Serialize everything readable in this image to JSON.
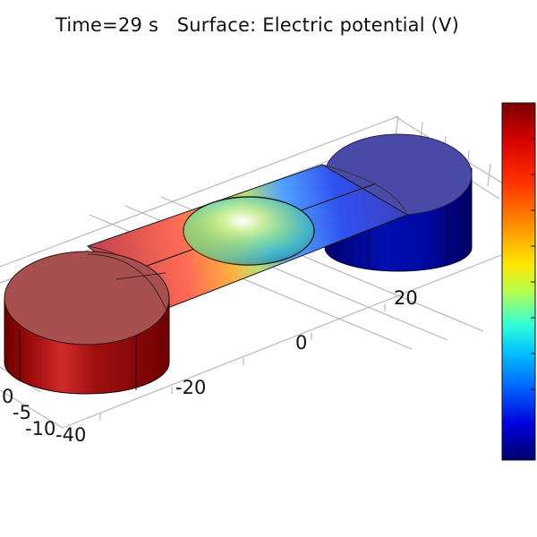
{
  "plot": {
    "title": "Time=29 s   Surface: Electric potential (V)"
  },
  "axes": {
    "y_ticks": [
      "20",
      "0",
      "-20",
      "-40"
    ],
    "z_ticks": [
      "0",
      "-5",
      "-10"
    ]
  },
  "colors": {
    "colormap": [
      "#8b0000",
      "#d40000",
      "#ff2a00",
      "#ff8000",
      "#ffd000",
      "#ffff00",
      "#9cff66",
      "#33ffd6",
      "#00c8ff",
      "#0064ff",
      "#0000d4",
      "#00008b"
    ],
    "left_cylinder": "#a01818",
    "right_cylinder": "#23239e",
    "grid_line": "#b5b5b5"
  }
}
